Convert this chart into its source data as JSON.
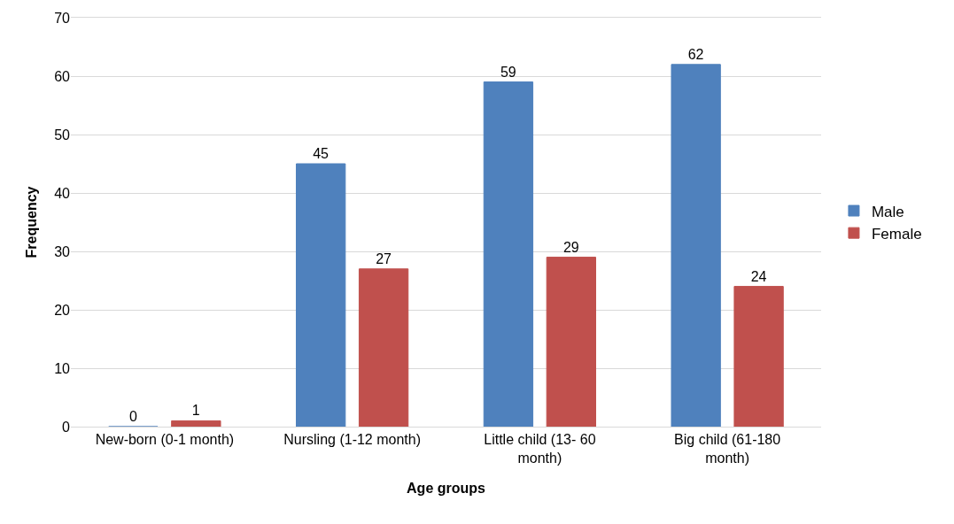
{
  "chart_data": {
    "type": "bar",
    "xlabel": "Age groups",
    "ylabel": "Frequency",
    "categories": [
      "New-born (0-1 month)",
      "Nursling (1-12 month)",
      "Little child (13- 60 month)",
      "Big child (61-180 month)"
    ],
    "series": [
      {
        "name": "Male",
        "color": "#4f81bd",
        "values": [
          0,
          45,
          59,
          62
        ]
      },
      {
        "name": "Female",
        "color": "#c0504d",
        "values": [
          1,
          27,
          29,
          24
        ]
      }
    ],
    "ylim": [
      0,
      70
    ],
    "yticks": [
      0,
      10,
      20,
      30,
      40,
      50,
      60,
      70
    ],
    "grid": "y",
    "legend": "right",
    "data_labels": true
  }
}
